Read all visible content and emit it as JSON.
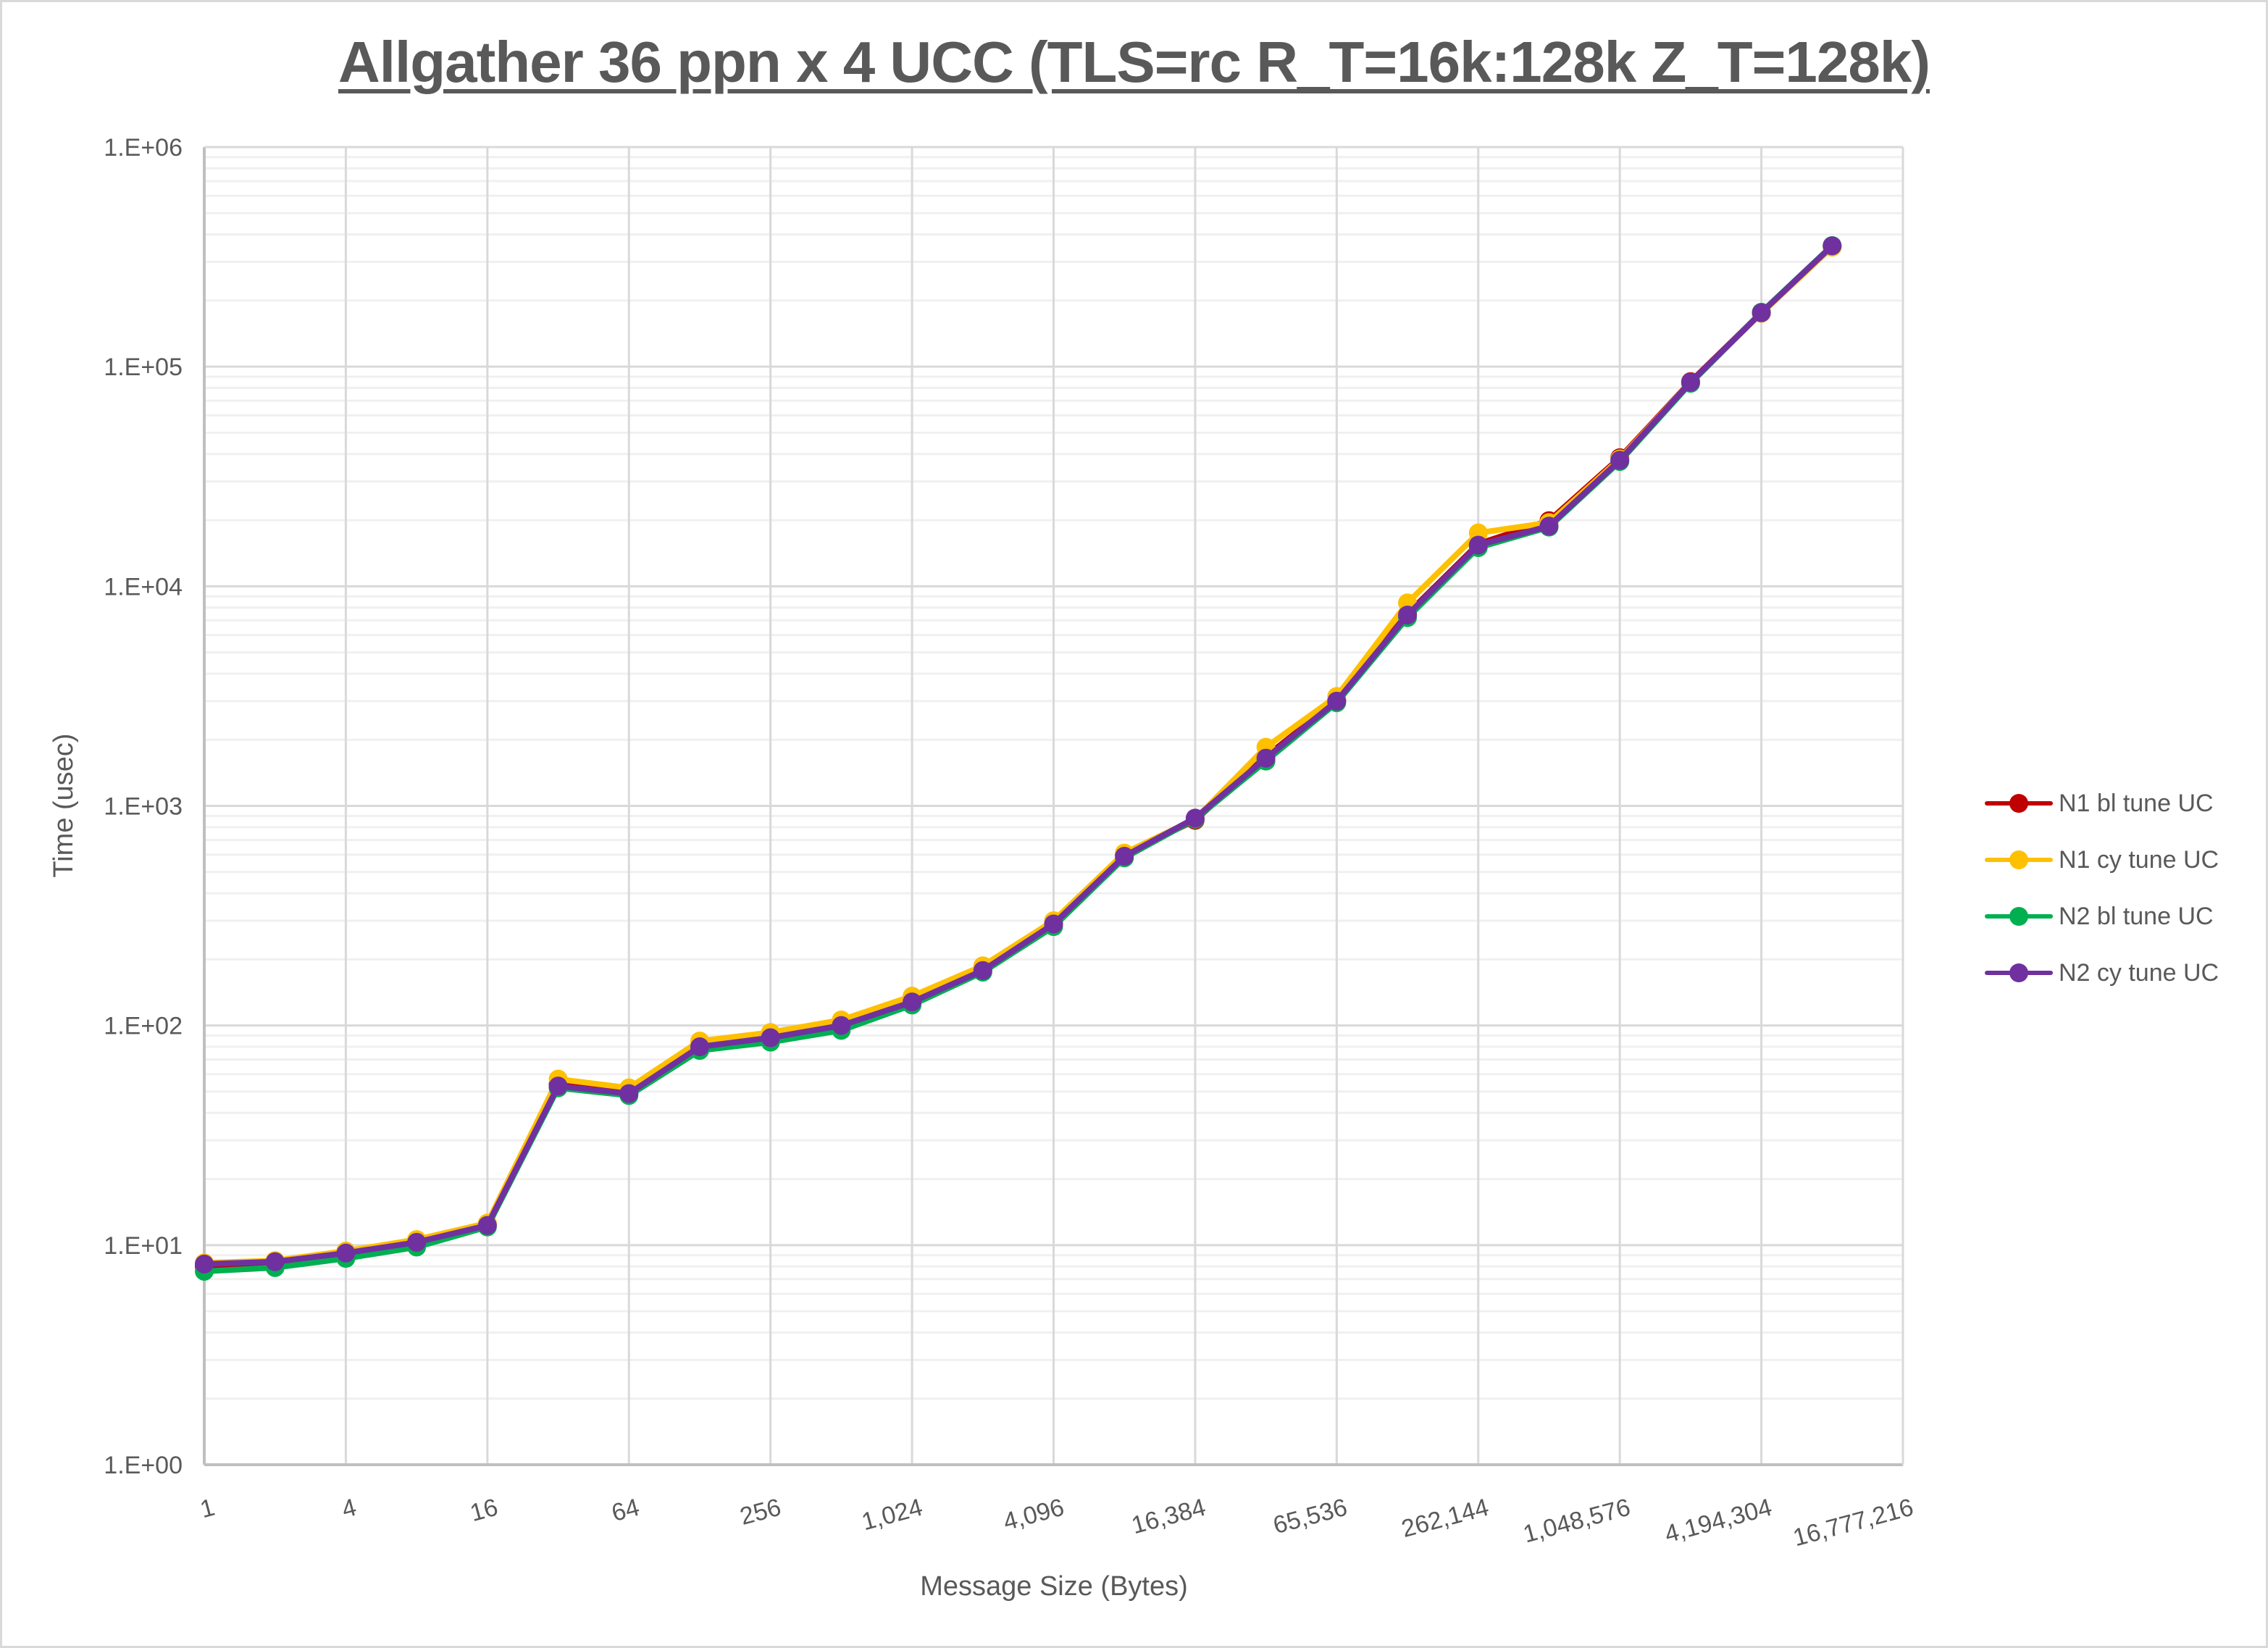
{
  "chart_data": {
    "type": "line",
    "title": "Allgather 36 ppn x 4 UCC (TLS=rc R_T=16k:128k Z_T=128k)",
    "xlabel": "Message Size (Bytes)",
    "ylabel": "Time (usec)",
    "x_scale": "log2",
    "y_scale": "log10",
    "ylim": [
      1,
      1000000
    ],
    "xlim": [
      1,
      16777216
    ],
    "grid": true,
    "legend_position": "right",
    "x_tick_labels": [
      "1",
      "4",
      "16",
      "64",
      "256",
      "1,024",
      "4,096",
      "16,384",
      "65,536",
      "262,144",
      "1,048,576",
      "4,194,304",
      "16,777,216"
    ],
    "y_tick_labels": [
      "1.E+00",
      "1.E+01",
      "1.E+02",
      "1.E+03",
      "1.E+04",
      "1.E+05",
      "1.E+06"
    ],
    "x": [
      1,
      2,
      4,
      8,
      16,
      32,
      64,
      128,
      256,
      512,
      1024,
      2048,
      4096,
      8192,
      16384,
      32768,
      65536,
      131072,
      262144,
      524288,
      1048576,
      2097152,
      4194304,
      8388608
    ],
    "series": [
      {
        "name": "N1 bl tune UC",
        "color": "#c00000",
        "values": [
          8.0,
          8.2,
          9.1,
          10.2,
          12.4,
          54,
          50,
          81,
          89,
          101,
          130,
          180,
          292,
          600,
          860,
          1680,
          3020,
          7500,
          15600,
          19900,
          38500,
          85500,
          176000,
          352000
        ]
      },
      {
        "name": "N1 cy tune UC",
        "color": "#ffc000",
        "values": [
          8.3,
          8.5,
          9.4,
          10.6,
          12.6,
          57,
          52,
          85,
          93,
          106,
          136,
          187,
          300,
          610,
          870,
          1850,
          3150,
          8400,
          17500,
          19500,
          38000,
          85000,
          175000,
          350000
        ]
      },
      {
        "name": "N2 bl tune UC",
        "color": "#00b050",
        "values": [
          7.6,
          7.9,
          8.7,
          9.8,
          12.1,
          52,
          48,
          77,
          84,
          95,
          124,
          175,
          282,
          580,
          870,
          1600,
          2950,
          7200,
          15000,
          18600,
          37000,
          84000,
          177000,
          356000
        ]
      },
      {
        "name": "N2 cy tune UC",
        "color": "#7030a0",
        "values": [
          8.2,
          8.4,
          9.2,
          10.3,
          12.3,
          53,
          49,
          80,
          88,
          100,
          128,
          178,
          290,
          590,
          880,
          1650,
          3000,
          7400,
          15400,
          18800,
          37500,
          85000,
          176000,
          355000
        ]
      }
    ]
  },
  "legend": {
    "items": [
      {
        "label": "N1 bl tune UC",
        "color": "#c00000"
      },
      {
        "label": "N1 cy tune UC",
        "color": "#ffc000"
      },
      {
        "label": "N2 bl tune UC",
        "color": "#00b050"
      },
      {
        "label": "N2 cy tune UC",
        "color": "#7030a0"
      }
    ]
  }
}
